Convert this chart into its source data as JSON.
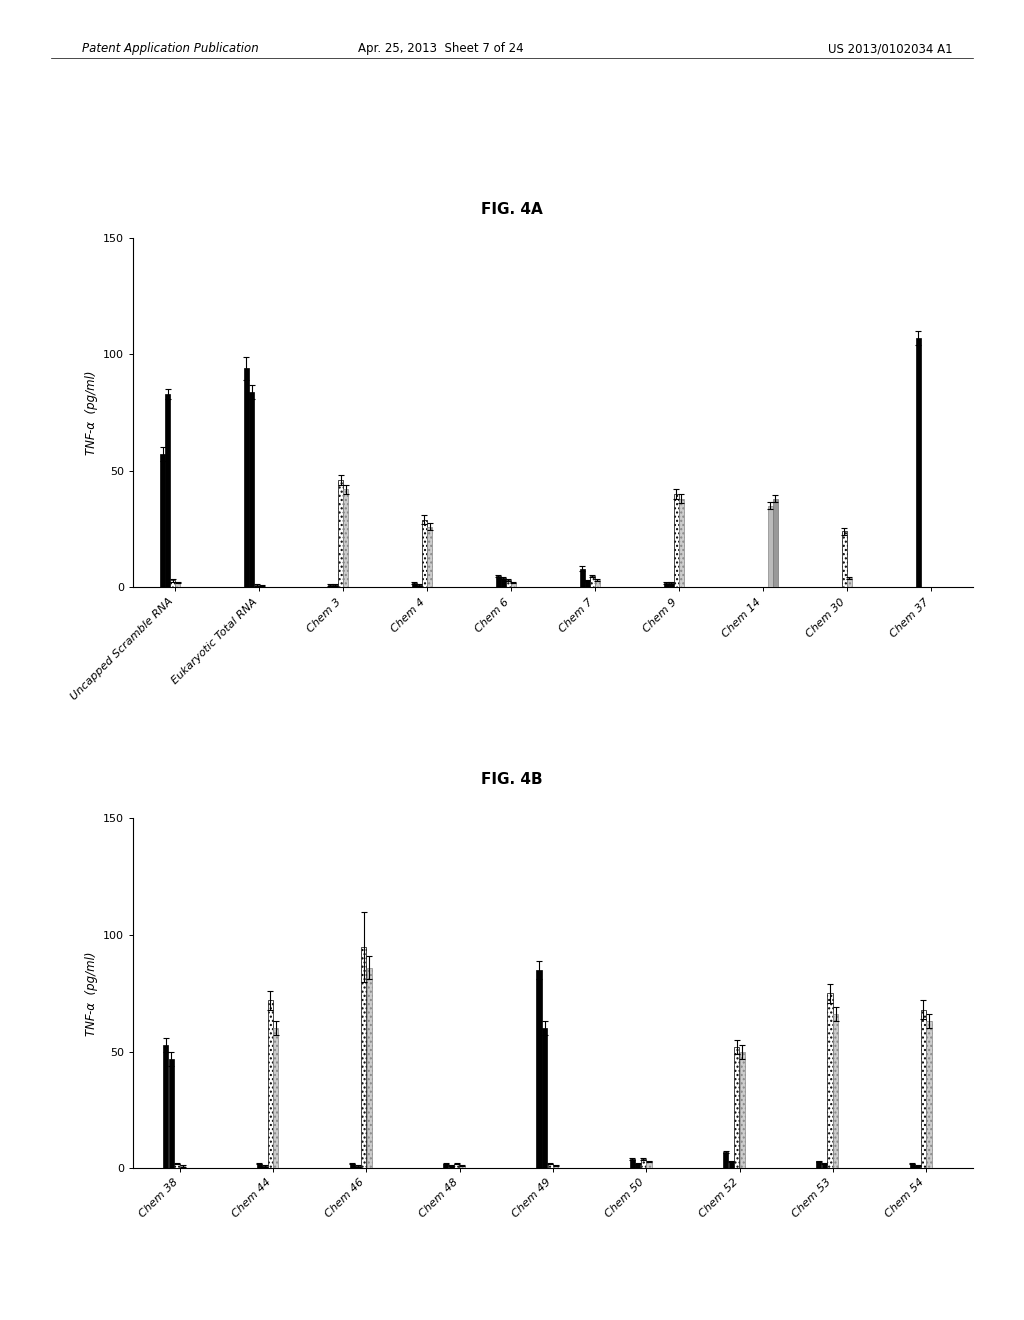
{
  "fig4a": {
    "title": "FIG. 4A",
    "categories": [
      "Uncapped Scramble RNA",
      "Eukaryotic Total RNA",
      "Chem 3",
      "Chem 4",
      "Chem 6",
      "Chem 7",
      "Chem 9",
      "Chem 14",
      "Chem 30",
      "Chem 37"
    ],
    "bar_groups": [
      {
        "values": [
          57,
          94,
          1,
          2,
          5,
          8,
          2,
          0,
          0,
          107
        ],
        "errors": [
          3,
          5,
          0.5,
          0.5,
          0.5,
          1,
          0.5,
          0,
          0,
          3
        ],
        "style": "solid_black"
      },
      {
        "values": [
          83,
          84,
          1,
          1,
          4,
          3,
          2,
          0,
          0,
          0
        ],
        "errors": [
          2,
          3,
          0.4,
          0.4,
          0.4,
          0.3,
          0.4,
          0,
          0,
          0
        ],
        "style": "solid_black"
      },
      {
        "values": [
          3,
          1,
          46,
          29,
          3,
          5,
          40,
          0,
          24,
          0
        ],
        "errors": [
          0.5,
          0.3,
          2,
          2,
          0.4,
          0.5,
          2,
          0,
          1.5,
          0
        ],
        "style": "dotted_white"
      },
      {
        "values": [
          2,
          1,
          42,
          26,
          2,
          3,
          38,
          0,
          4,
          0
        ],
        "errors": [
          0.3,
          0.2,
          2,
          1.5,
          0.3,
          0.4,
          2,
          0,
          0.5,
          0
        ],
        "style": "dotted_gray"
      },
      {
        "values": [
          0,
          0,
          0,
          0,
          0,
          0,
          0,
          35,
          0,
          0
        ],
        "errors": [
          0,
          0,
          0,
          0,
          0,
          0,
          0,
          1.5,
          0,
          0
        ],
        "style": "light_gray"
      },
      {
        "values": [
          0,
          0,
          0,
          0,
          0,
          0,
          0,
          38,
          0,
          0
        ],
        "errors": [
          0,
          0,
          0,
          0,
          0,
          0,
          0,
          1.5,
          0,
          0
        ],
        "style": "light_gray2"
      }
    ],
    "ylabel": "TNF-α  (pg/ml)",
    "ylim": [
      0,
      150
    ],
    "yticks": [
      0,
      50,
      100,
      150
    ]
  },
  "fig4b": {
    "title": "FIG. 4B",
    "categories": [
      "Chem 38",
      "Chem 44",
      "Chem 46",
      "Chem 48",
      "Chem 49",
      "Chem 50",
      "Chem 52",
      "Chem 53",
      "Chem 54"
    ],
    "bar_groups": [
      {
        "values": [
          53,
          2,
          2,
          2,
          85,
          4,
          7,
          3,
          2
        ],
        "errors": [
          3,
          0.4,
          0.4,
          0.3,
          4,
          0.4,
          0.5,
          0.3,
          0.3
        ],
        "style": "solid_black"
      },
      {
        "values": [
          47,
          1,
          1,
          1,
          60,
          2,
          3,
          2,
          1
        ],
        "errors": [
          3,
          0.3,
          0.3,
          0.2,
          3,
          0.3,
          0.3,
          0.2,
          0.2
        ],
        "style": "solid_black"
      },
      {
        "values": [
          2,
          72,
          95,
          2,
          2,
          4,
          52,
          75,
          68
        ],
        "errors": [
          0.4,
          4,
          15,
          0.3,
          0.3,
          0.4,
          3,
          4,
          4
        ],
        "style": "dotted_white"
      },
      {
        "values": [
          1,
          60,
          86,
          1,
          1,
          3,
          50,
          66,
          63
        ],
        "errors": [
          0.3,
          3,
          5,
          0.2,
          0.2,
          0.3,
          3,
          3,
          3
        ],
        "style": "dotted_gray"
      },
      {
        "values": [
          0,
          0,
          0,
          0,
          0,
          0,
          0,
          0,
          0
        ],
        "errors": [
          0,
          0,
          0,
          0,
          0,
          0,
          0,
          0,
          0
        ],
        "style": "light_gray"
      },
      {
        "values": [
          0,
          0,
          0,
          0,
          0,
          0,
          0,
          0,
          0
        ],
        "errors": [
          0,
          0,
          0,
          0,
          0,
          0,
          0,
          0,
          0
        ],
        "style": "light_gray2"
      }
    ],
    "ylabel": "TNF-α  (pg/ml)",
    "ylim": [
      0,
      150
    ],
    "yticks": [
      0,
      50,
      100,
      150
    ]
  },
  "header_left": "Patent Application Publication",
  "header_center": "Apr. 25, 2013  Sheet 7 of 24",
  "header_right": "US 2013/0102034 A1",
  "background_color": "#ffffff",
  "bar_styles": {
    "solid_black": {
      "facecolor": "#000000",
      "edgecolor": "#000000",
      "hatch": ""
    },
    "dotted_white": {
      "facecolor": "#ffffff",
      "edgecolor": "#000000",
      "hatch": "...."
    },
    "dotted_gray": {
      "facecolor": "#cccccc",
      "edgecolor": "#888888",
      "hatch": "...."
    },
    "light_gray": {
      "facecolor": "#bbbbbb",
      "edgecolor": "#888888",
      "hatch": ""
    },
    "light_gray2": {
      "facecolor": "#999999",
      "edgecolor": "#777777",
      "hatch": ""
    }
  }
}
